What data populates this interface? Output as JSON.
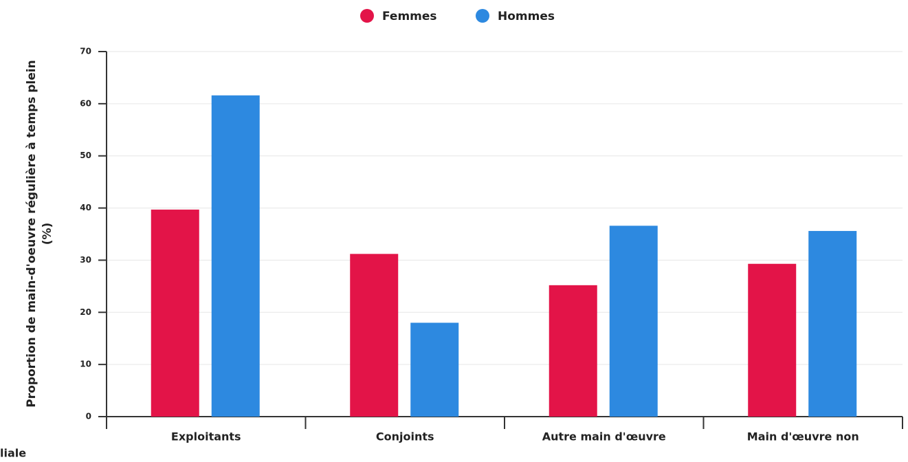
{
  "chart_data": {
    "type": "bar",
    "ylabel": [
      "Proportion de main-d'oeuvre régulière à temps plein",
      "(%)"
    ],
    "categories": [
      "Exploitants",
      "Conjoints",
      "Autre main d'œuvre",
      "Main d'œuvre non"
    ],
    "annotation": "liale",
    "series": [
      {
        "name": "Femmes",
        "color": "#e31448",
        "values": [
          39.7,
          31.2,
          25.2,
          29.3
        ]
      },
      {
        "name": "Hommes",
        "color": "#2d89e0",
        "values": [
          61.6,
          18.0,
          36.6,
          35.6
        ]
      }
    ],
    "ylim": [
      0,
      70
    ],
    "yticks": [
      0,
      10,
      20,
      30,
      40,
      50,
      60,
      70
    ],
    "grid": true,
    "legend": "top"
  }
}
